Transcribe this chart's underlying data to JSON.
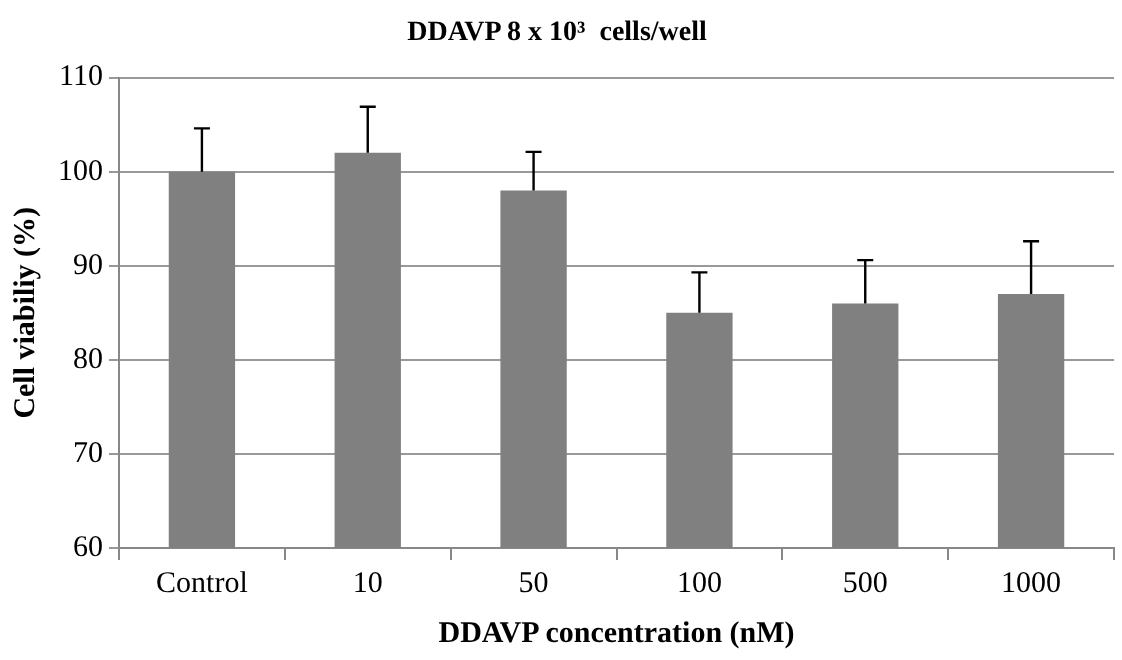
{
  "chart_data": {
    "type": "bar",
    "title": "DDAVP 8 x 10³  cells/well",
    "xlabel": "DDAVP concentration (nM)",
    "ylabel": "Cell viabiliy (%)",
    "categories": [
      "Control",
      "10",
      "50",
      "100",
      "500",
      "1000"
    ],
    "values": [
      100,
      102,
      98,
      85,
      86,
      87
    ],
    "errors": [
      [
        100,
        104.6
      ],
      [
        102,
        106.9
      ],
      [
        98,
        102.1
      ],
      [
        85,
        89.3
      ],
      [
        86,
        90.6
      ],
      [
        87,
        92.6
      ]
    ],
    "color": "#808080",
    "ylim": [
      60,
      110
    ],
    "yticks": [
      60,
      70,
      80,
      90,
      100,
      110
    ],
    "grid": "y"
  }
}
